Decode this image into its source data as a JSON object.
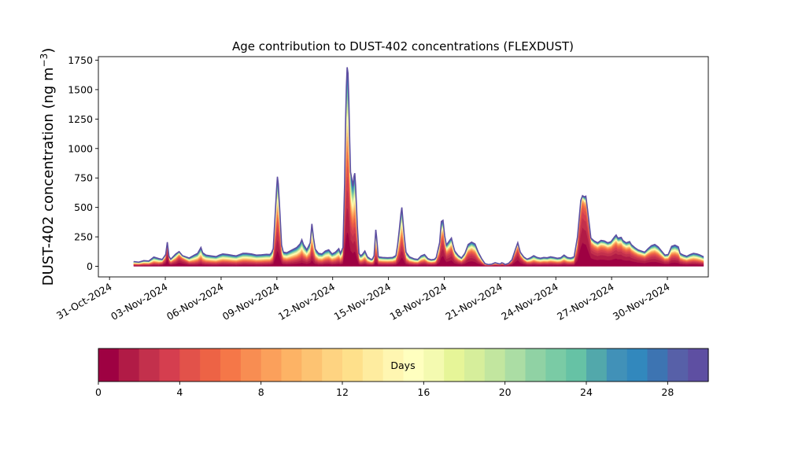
{
  "chart_data": {
    "type": "area",
    "title": "Age contribution to DUST-402 concentrations (FLEXDUST)",
    "ylabel_main": "DUST-402 concentration (ng m",
    "ylabel_sup": "−3",
    "ylabel_close": ")",
    "ylim": [
      -90,
      1780
    ],
    "yticks": [
      0,
      250,
      500,
      750,
      1000,
      1250,
      1500,
      1750
    ],
    "x_start": "2024-10-31",
    "x_end": "2024-12-03",
    "xlim_days": [
      -0.6,
      32.2
    ],
    "xticks": [
      {
        "day": 0,
        "label": "31-Oct-2024"
      },
      {
        "day": 3,
        "label": "03-Nov-2024"
      },
      {
        "day": 6,
        "label": "06-Nov-2024"
      },
      {
        "day": 9,
        "label": "09-Nov-2024"
      },
      {
        "day": 12,
        "label": "12-Nov-2024"
      },
      {
        "day": 15,
        "label": "15-Nov-2024"
      },
      {
        "day": 18,
        "label": "18-Nov-2024"
      },
      {
        "day": 21,
        "label": "21-Nov-2024"
      },
      {
        "day": 24,
        "label": "24-Nov-2024"
      },
      {
        "day": 27,
        "label": "27-Nov-2024"
      },
      {
        "day": 30,
        "label": "30-Nov-2024"
      }
    ],
    "total_series": [
      [
        1.0,
        40
      ],
      [
        1.3,
        35
      ],
      [
        1.6,
        48
      ],
      [
        1.9,
        45
      ],
      [
        2.2,
        78
      ],
      [
        2.5,
        65
      ],
      [
        2.7,
        58
      ],
      [
        2.9,
        100
      ],
      [
        3.0,
        205
      ],
      [
        3.1,
        85
      ],
      [
        3.2,
        60
      ],
      [
        3.5,
        105
      ],
      [
        3.7,
        125
      ],
      [
        3.9,
        90
      ],
      [
        4.1,
        80
      ],
      [
        4.3,
        70
      ],
      [
        4.6,
        95
      ],
      [
        4.8,
        110
      ],
      [
        5.0,
        160
      ],
      [
        5.1,
        115
      ],
      [
        5.3,
        95
      ],
      [
        5.6,
        88
      ],
      [
        5.9,
        82
      ],
      [
        6.1,
        95
      ],
      [
        6.3,
        105
      ],
      [
        6.6,
        100
      ],
      [
        6.9,
        92
      ],
      [
        7.1,
        88
      ],
      [
        7.3,
        100
      ],
      [
        7.5,
        110
      ],
      [
        7.7,
        110
      ],
      [
        8.0,
        105
      ],
      [
        8.3,
        95
      ],
      [
        8.6,
        98
      ],
      [
        8.9,
        102
      ],
      [
        9.1,
        100
      ],
      [
        9.2,
        115
      ],
      [
        9.3,
        150
      ],
      [
        9.4,
        400
      ],
      [
        9.5,
        650
      ],
      [
        9.55,
        760
      ],
      [
        9.6,
        700
      ],
      [
        9.7,
        450
      ],
      [
        9.8,
        180
      ],
      [
        9.9,
        120
      ],
      [
        10.1,
        115
      ],
      [
        10.3,
        130
      ],
      [
        10.5,
        145
      ],
      [
        10.7,
        160
      ],
      [
        10.9,
        190
      ],
      [
        11.0,
        225
      ],
      [
        11.1,
        185
      ],
      [
        11.3,
        140
      ],
      [
        11.5,
        200
      ],
      [
        11.6,
        360
      ],
      [
        11.7,
        240
      ],
      [
        11.8,
        145
      ],
      [
        12.0,
        110
      ],
      [
        12.2,
        105
      ],
      [
        12.4,
        130
      ],
      [
        12.6,
        140
      ],
      [
        12.8,
        105
      ],
      [
        13.0,
        120
      ],
      [
        13.2,
        150
      ],
      [
        13.3,
        110
      ],
      [
        13.45,
        160
      ],
      [
        13.55,
        700
      ],
      [
        13.6,
        1200
      ],
      [
        13.65,
        1520
      ],
      [
        13.7,
        1690
      ],
      [
        13.75,
        1640
      ],
      [
        13.8,
        1400
      ],
      [
        13.85,
        1050
      ],
      [
        13.9,
        800
      ],
      [
        14.0,
        720
      ],
      [
        14.05,
        680
      ],
      [
        14.1,
        760
      ],
      [
        14.15,
        790
      ],
      [
        14.2,
        690
      ],
      [
        14.3,
        350
      ],
      [
        14.4,
        110
      ],
      [
        14.5,
        90
      ],
      [
        14.6,
        100
      ],
      [
        14.75,
        130
      ],
      [
        14.9,
        80
      ],
      [
        15.1,
        60
      ],
      [
        15.2,
        60
      ],
      [
        15.3,
        90
      ],
      [
        15.4,
        310
      ],
      [
        15.45,
        250
      ],
      [
        15.55,
        80
      ],
      [
        15.8,
        75
      ],
      [
        16.1,
        72
      ],
      [
        16.4,
        75
      ],
      [
        16.6,
        90
      ],
      [
        16.7,
        180
      ],
      [
        16.8,
        310
      ],
      [
        16.9,
        450
      ],
      [
        16.95,
        500
      ],
      [
        17.0,
        420
      ],
      [
        17.1,
        250
      ],
      [
        17.2,
        120
      ],
      [
        17.4,
        80
      ],
      [
        17.7,
        62
      ],
      [
        17.9,
        58
      ],
      [
        18.1,
        88
      ],
      [
        18.3,
        100
      ],
      [
        18.5,
        65
      ],
      [
        18.7,
        55
      ],
      [
        18.9,
        60
      ],
      [
        19.0,
        75
      ],
      [
        19.2,
        200
      ],
      [
        19.3,
        380
      ],
      [
        19.4,
        390
      ],
      [
        19.5,
        260
      ],
      [
        19.6,
        180
      ],
      [
        19.8,
        220
      ],
      [
        19.9,
        240
      ],
      [
        20.0,
        180
      ],
      [
        20.1,
        130
      ],
      [
        20.3,
        92
      ],
      [
        20.5,
        70
      ],
      [
        20.7,
        110
      ],
      [
        20.9,
        185
      ],
      [
        21.1,
        205
      ],
      [
        21.3,
        190
      ],
      [
        21.5,
        120
      ],
      [
        21.7,
        65
      ],
      [
        21.9,
        22
      ],
      [
        22.1,
        15
      ],
      [
        22.3,
        18
      ],
      [
        22.5,
        30
      ],
      [
        22.7,
        22
      ],
      [
        22.8,
        20
      ],
      [
        22.9,
        30
      ],
      [
        23.0,
        25
      ],
      [
        23.1,
        15
      ],
      [
        23.3,
        25
      ],
      [
        23.5,
        55
      ],
      [
        23.7,
        140
      ],
      [
        23.85,
        200
      ],
      [
        24.0,
        120
      ],
      [
        24.2,
        80
      ],
      [
        24.4,
        60
      ],
      [
        24.6,
        72
      ],
      [
        24.8,
        90
      ],
      [
        25.0,
        75
      ],
      [
        25.2,
        68
      ],
      [
        25.4,
        75
      ],
      [
        25.6,
        72
      ],
      [
        25.8,
        80
      ],
      [
        26.0,
        75
      ],
      [
        26.2,
        68
      ],
      [
        26.4,
        72
      ],
      [
        26.6,
        95
      ],
      [
        26.8,
        75
      ],
      [
        27.0,
        70
      ],
      [
        27.2,
        80
      ],
      [
        27.4,
        250
      ],
      [
        27.6,
        560
      ],
      [
        27.7,
        600
      ],
      [
        27.8,
        590
      ],
      [
        27.9,
        595
      ],
      [
        28.0,
        480
      ],
      [
        28.1,
        360
      ],
      [
        28.2,
        240
      ],
      [
        28.4,
        215
      ],
      [
        28.6,
        200
      ],
      [
        28.8,
        220
      ],
      [
        29.0,
        215
      ],
      [
        29.2,
        200
      ],
      [
        29.4,
        210
      ],
      [
        29.6,
        250
      ],
      [
        29.7,
        265
      ],
      [
        29.8,
        240
      ],
      [
        30.0,
        245
      ],
      [
        30.1,
        220
      ],
      [
        30.3,
        200
      ],
      [
        30.5,
        210
      ],
      [
        30.6,
        185
      ],
      [
        30.8,
        160
      ],
      [
        31.0,
        140
      ],
      [
        31.2,
        130
      ],
      [
        31.4,
        120
      ],
      [
        31.6,
        150
      ],
      [
        31.8,
        175
      ],
      [
        32.0,
        185
      ],
      [
        32.2,
        165
      ],
      [
        32.4,
        130
      ],
      [
        32.6,
        95
      ],
      [
        32.8,
        100
      ],
      [
        33.0,
        170
      ],
      [
        33.2,
        180
      ],
      [
        33.4,
        165
      ],
      [
        33.5,
        110
      ],
      [
        33.7,
        95
      ],
      [
        33.9,
        85
      ],
      [
        34.1,
        100
      ],
      [
        34.3,
        110
      ],
      [
        34.5,
        105
      ],
      [
        34.7,
        95
      ],
      [
        34.9,
        80
      ]
    ],
    "young_fraction": [
      [
        1.0,
        0.04
      ],
      [
        2.5,
        0.04
      ],
      [
        2.9,
        0.5
      ],
      [
        3.0,
        0.7
      ],
      [
        3.1,
        0.4
      ],
      [
        3.4,
        0.1
      ],
      [
        3.6,
        0.45
      ],
      [
        3.8,
        0.65
      ],
      [
        4.0,
        0.5
      ],
      [
        4.3,
        0.2
      ],
      [
        4.6,
        0.08
      ],
      [
        8.8,
        0.05
      ],
      [
        9.3,
        0.15
      ],
      [
        9.55,
        0.3
      ],
      [
        9.8,
        0.2
      ],
      [
        10.2,
        0.12
      ],
      [
        11.6,
        0.2
      ],
      [
        12.0,
        0.1
      ],
      [
        13.4,
        0.15
      ],
      [
        13.7,
        0.3
      ],
      [
        14.2,
        0.25
      ],
      [
        14.5,
        0.12
      ],
      [
        16.8,
        0.15
      ],
      [
        17.0,
        0.25
      ],
      [
        17.3,
        0.12
      ],
      [
        19.1,
        0.2
      ],
      [
        19.4,
        0.5
      ],
      [
        19.7,
        0.35
      ],
      [
        19.9,
        0.45
      ],
      [
        20.2,
        0.3
      ],
      [
        20.6,
        0.3
      ],
      [
        21.0,
        0.45
      ],
      [
        21.5,
        0.3
      ],
      [
        22.0,
        0.15
      ],
      [
        23.5,
        0.5
      ],
      [
        23.85,
        0.65
      ],
      [
        24.2,
        0.4
      ],
      [
        24.6,
        0.12
      ],
      [
        27.2,
        0.12
      ],
      [
        27.5,
        0.55
      ],
      [
        27.7,
        0.88
      ],
      [
        28.0,
        0.75
      ],
      [
        28.5,
        0.62
      ],
      [
        29.5,
        0.58
      ],
      [
        30.5,
        0.52
      ],
      [
        31.5,
        0.45
      ],
      [
        32.5,
        0.35
      ],
      [
        33.2,
        0.3
      ],
      [
        34.0,
        0.2
      ],
      [
        34.9,
        0.12
      ]
    ]
  },
  "colorbar": {
    "label": "Days",
    "vmin": 0,
    "vmax": 30,
    "ticks": [
      0,
      4,
      8,
      12,
      16,
      20,
      24,
      28
    ],
    "colors": [
      "#9e0142",
      "#b11b46",
      "#c3304c",
      "#d53e4f",
      "#e2524a",
      "#ed6345",
      "#f57748",
      "#f88d52",
      "#fba05b",
      "#fdb365",
      "#fdc372",
      "#fed381",
      "#fee08b",
      "#feec9f",
      "#fff6b1",
      "#ffffbf",
      "#f4fab0",
      "#e6f598",
      "#d6ee9b",
      "#c2e69f",
      "#abdda4",
      "#90d2a4",
      "#7acba5",
      "#66c2a5",
      "#52a8ab",
      "#4191b8",
      "#3288bd",
      "#3d74b2",
      "#5760a8",
      "#5e4fa2"
    ]
  }
}
